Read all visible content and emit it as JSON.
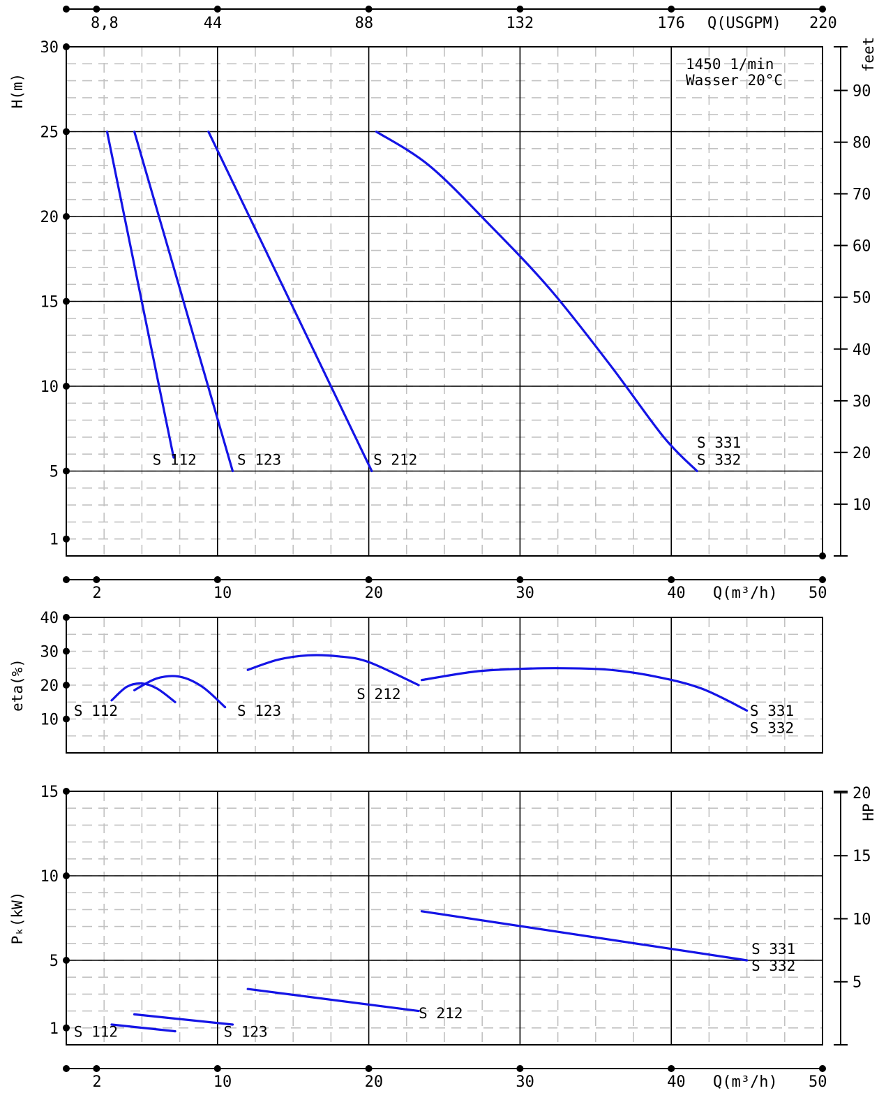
{
  "chart_data": {
    "type": "line",
    "top_axis": {
      "label": "Q(USGPM)",
      "ticks": [
        {
          "label": "8,8",
          "q": 2
        },
        {
          "label": "44",
          "q": 10
        },
        {
          "label": "88",
          "q": 20
        },
        {
          "label": "132",
          "q": 30
        },
        {
          "label": "176",
          "q": 40
        },
        {
          "label": "220",
          "q": 50
        }
      ]
    },
    "x_axis": {
      "label": "Q(m³/h)",
      "range": [
        0,
        50
      ],
      "ticks": [
        {
          "label": "2",
          "q": 2
        },
        {
          "label": "10",
          "q": 10
        },
        {
          "label": "20",
          "q": 20
        },
        {
          "label": "30",
          "q": 30
        },
        {
          "label": "40",
          "q": 40
        },
        {
          "label": "50",
          "q": 50
        }
      ]
    },
    "note": [
      "1450 1/min",
      "Wasser 20°C"
    ],
    "panels": [
      {
        "id": "head",
        "ylabel": "H(m)",
        "ylim": [
          0,
          30
        ],
        "yticks": [
          {
            "label": "1",
            "v": 1
          },
          {
            "label": "5",
            "v": 5
          },
          {
            "label": "10",
            "v": 10
          },
          {
            "label": "15",
            "v": 15
          },
          {
            "label": "20",
            "v": 20
          },
          {
            "label": "25",
            "v": 25
          },
          {
            "label": "30",
            "v": 30
          }
        ],
        "y2label": "feet",
        "y2ticks": [
          {
            "label": "10",
            "v": 3.05
          },
          {
            "label": "20",
            "v": 6.1
          },
          {
            "label": "30",
            "v": 9.14
          },
          {
            "label": "40",
            "v": 12.19
          },
          {
            "label": "50",
            "v": 15.24
          },
          {
            "label": "60",
            "v": 18.29
          },
          {
            "label": "70",
            "v": 21.34
          },
          {
            "label": "80",
            "v": 24.38
          },
          {
            "label": "90",
            "v": 27.43
          }
        ],
        "series": [
          {
            "name": "S 112",
            "x": [
              2.7,
              7.1
            ],
            "y": [
              25,
              5.8
            ]
          },
          {
            "name": "S 123",
            "x": [
              4.5,
              11.0
            ],
            "y": [
              25,
              5
            ]
          },
          {
            "name": "S 212",
            "x": [
              9.4,
              20.2
            ],
            "y": [
              25,
              5
            ]
          },
          {
            "name": "S 331 / S 332",
            "x": [
              20.5,
              24,
              28,
              32,
              36,
              39.5,
              41.7
            ],
            "y": [
              25,
              23,
              19.5,
              15.7,
              11.2,
              7,
              5
            ]
          }
        ],
        "labels": [
          {
            "text": "S 112",
            "q": 5.7,
            "v": 5.5
          },
          {
            "text": "S 123",
            "q": 11.3,
            "v": 5.5
          },
          {
            "text": "S 212",
            "q": 20.3,
            "v": 5.5
          },
          {
            "text": "S 331",
            "q": 41.7,
            "v": 6.5
          },
          {
            "text": "S 332",
            "q": 41.7,
            "v": 5.5
          }
        ]
      },
      {
        "id": "efficiency",
        "ylabel": "eta(%)",
        "ylim": [
          0,
          40
        ],
        "yticks": [
          {
            "label": "10",
            "v": 10
          },
          {
            "label": "20",
            "v": 20
          },
          {
            "label": "30",
            "v": 30
          },
          {
            "label": "40",
            "v": 40
          }
        ],
        "series": [
          {
            "name": "S 112",
            "x": [
              3,
              4,
              5,
              6,
              7.2
            ],
            "y": [
              15.5,
              19.5,
              20.5,
              19,
              15
            ]
          },
          {
            "name": "S 123",
            "x": [
              4.5,
              6,
              7.5,
              9,
              10.5
            ],
            "y": [
              18.5,
              22,
              22.5,
              19.5,
              13.5
            ]
          },
          {
            "name": "S 212",
            "x": [
              12,
              14,
              16,
              18,
              20,
              23.3
            ],
            "y": [
              24.5,
              27.5,
              28.8,
              28.5,
              26.8,
              20
            ]
          },
          {
            "name": "S 331 / S 332",
            "x": [
              23.5,
              27,
              30,
              33,
              36,
              39,
              42,
              45
            ],
            "y": [
              21.5,
              24,
              24.8,
              25,
              24.5,
              22.5,
              19,
              12.5
            ]
          }
        ],
        "labels": [
          {
            "text": "S 112",
            "q": 0.5,
            "v": 11.5
          },
          {
            "text": "S 123",
            "q": 11.3,
            "v": 11.5
          },
          {
            "text": "S 212",
            "q": 19.2,
            "v": 16.5
          },
          {
            "text": "S 331",
            "q": 45.2,
            "v": 11.5
          },
          {
            "text": "S 332",
            "q": 45.2,
            "v": 6.5
          }
        ]
      },
      {
        "id": "power",
        "ylabel": "Pₖ(kW)",
        "ylim": [
          0,
          15
        ],
        "yticks": [
          {
            "label": "1",
            "v": 1
          },
          {
            "label": "5",
            "v": 5
          },
          {
            "label": "10",
            "v": 10
          },
          {
            "label": "15",
            "v": 15
          }
        ],
        "y2label": "HP",
        "y2ticks": [
          {
            "label": "5",
            "v": 3.73
          },
          {
            "label": "10",
            "v": 7.46
          },
          {
            "label": "15",
            "v": 11.19
          },
          {
            "label": "20",
            "v": 14.91
          }
        ],
        "series": [
          {
            "name": "S 112",
            "x": [
              3,
              7.2
            ],
            "y": [
              1.2,
              0.8
            ]
          },
          {
            "name": "S 123",
            "x": [
              4.5,
              11.0
            ],
            "y": [
              1.8,
              1.2
            ]
          },
          {
            "name": "S 212",
            "x": [
              12,
              23.3
            ],
            "y": [
              3.3,
              2.0
            ]
          },
          {
            "name": "S 331 / S 332",
            "x": [
              23.5,
              45
            ],
            "y": [
              7.9,
              5.0
            ]
          }
        ],
        "labels": [
          {
            "text": "S 112",
            "q": 0.5,
            "v": 0.6
          },
          {
            "text": "S 123",
            "q": 10.4,
            "v": 0.6
          },
          {
            "text": "S 212",
            "q": 23.3,
            "v": 1.7
          },
          {
            "text": "S 331",
            "q": 45.3,
            "v": 5.5
          },
          {
            "text": "S 332",
            "q": 45.3,
            "v": 4.5
          }
        ]
      }
    ]
  }
}
